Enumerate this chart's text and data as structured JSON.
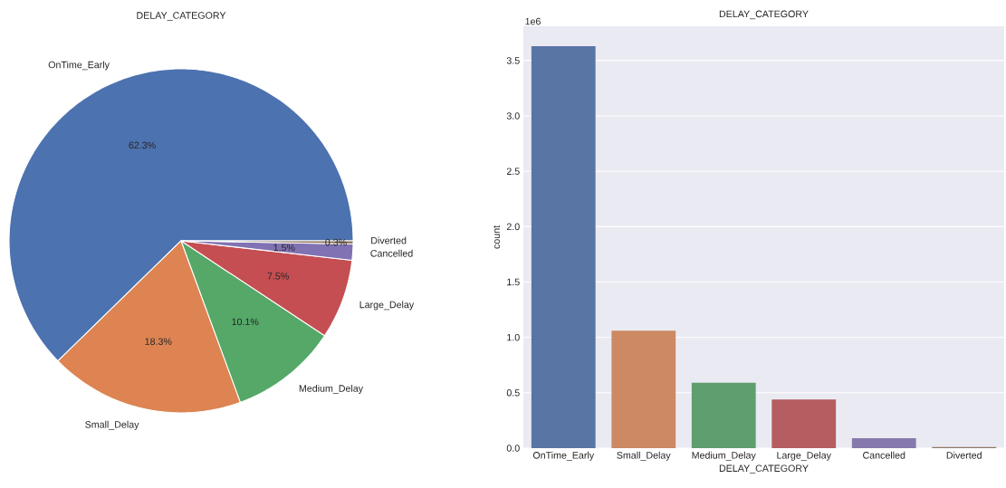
{
  "chart_data": [
    {
      "type": "pie",
      "title": "DELAY_CATEGORY",
      "categories": [
        "OnTime_Early",
        "Small_Delay",
        "Medium_Delay",
        "Large_Delay",
        "Cancelled",
        "Diverted"
      ],
      "values": [
        62.3,
        18.3,
        10.1,
        7.5,
        1.5,
        0.3
      ],
      "value_labels": [
        "62.3%",
        "18.3%",
        "10.1%",
        "7.5%",
        "1.5%",
        "0.3%"
      ],
      "colors": [
        "#4c72b0",
        "#dd8452",
        "#55a868",
        "#c44e52",
        "#8172b3",
        "#937860"
      ]
    },
    {
      "type": "bar",
      "title": "DELAY_CATEGORY",
      "xlabel": "DELAY_CATEGORY",
      "ylabel": "count",
      "categories": [
        "OnTime_Early",
        "Small_Delay",
        "Medium_Delay",
        "Large_Delay",
        "Cancelled",
        "Diverted"
      ],
      "values": [
        3.63,
        1.06,
        0.59,
        0.44,
        0.09,
        0.01
      ],
      "colors": [
        "#5975a4",
        "#cc8963",
        "#5f9e6e",
        "#b55d60",
        "#857aab",
        "#8d7866"
      ],
      "ylim": [
        0,
        3.81
      ],
      "yticks": [
        {
          "value": 0,
          "label": "0.0"
        },
        0.5,
        {
          "value": 1,
          "label": "1.0"
        },
        1.5,
        {
          "value": 2,
          "label": "2.0"
        },
        2.5,
        {
          "value": 3,
          "label": "3.0"
        },
        3.5
      ],
      "grid": "y",
      "annotations": [
        "1e6"
      ]
    }
  ]
}
